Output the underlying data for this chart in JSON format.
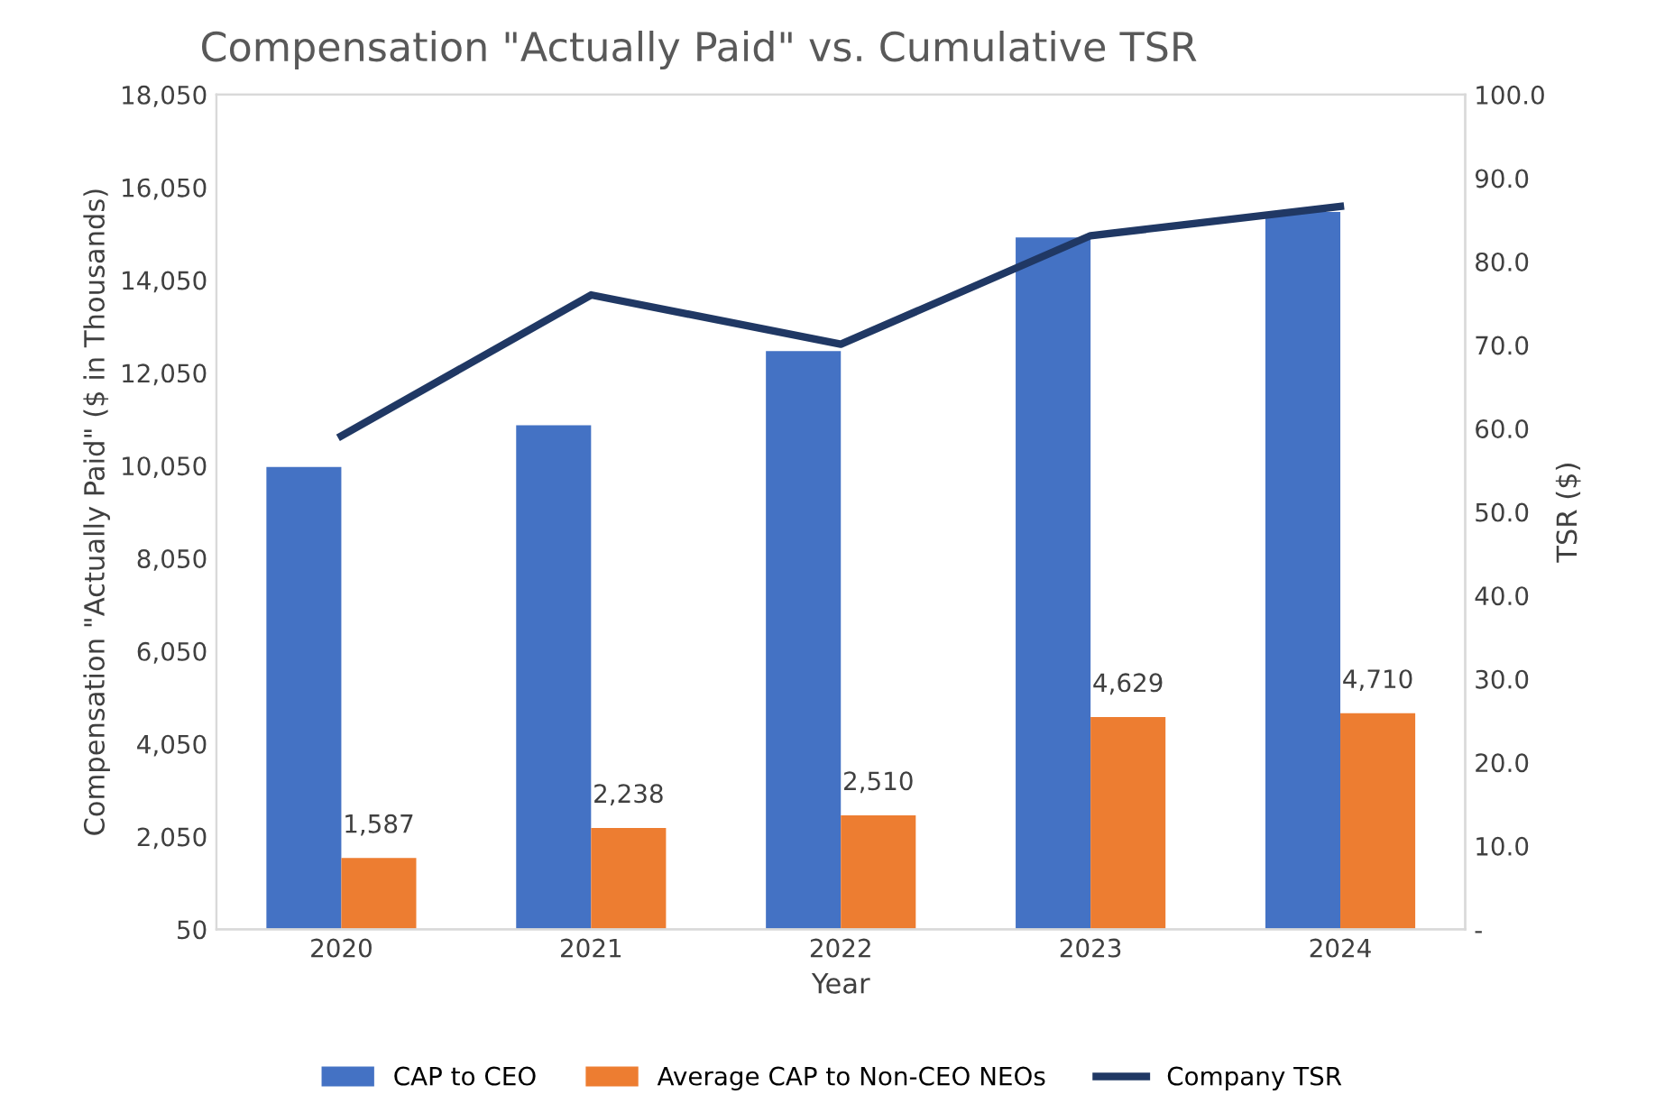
{
  "chart_data": {
    "type": "bar",
    "title": "Compensation \"Actually Paid\" vs. Cumulative TSR",
    "xlabel": "Year",
    "ylabel": "Compensation \"Actually Paid\" ($ in Thousands)",
    "y2label": "TSR ($)",
    "categories": [
      "2020",
      "2021",
      "2022",
      "2023",
      "2024"
    ],
    "series": [
      {
        "name": "CAP to CEO",
        "color": "#4472c4",
        "values": [
          10020,
          10920,
          12520,
          14970,
          15520
        ]
      },
      {
        "name": "Average CAP to Non-CEO NEOs",
        "color": "#ed7d31",
        "values": [
          1587,
          2238,
          2510,
          4629,
          4710
        ],
        "value_labels": [
          "1,587",
          "2,238",
          "2,510",
          "4,629",
          "4,710"
        ]
      },
      {
        "name": "Company TSR",
        "color": "#203864",
        "type": "line",
        "axis": "y2",
        "values": [
          59.1,
          76.0,
          70.1,
          83.1,
          86.6
        ]
      }
    ],
    "ylim": [
      50,
      18050
    ],
    "yticks": [
      {
        "value": 50,
        "label": "50"
      },
      {
        "value": 2050,
        "label": "2,050"
      },
      {
        "value": 4050,
        "label": "4,050"
      },
      {
        "value": 6050,
        "label": "6,050"
      },
      {
        "value": 8050,
        "label": "8,050"
      },
      {
        "value": 10050,
        "label": "10,050"
      },
      {
        "value": 12050,
        "label": "12,050"
      },
      {
        "value": 14050,
        "label": "14,050"
      },
      {
        "value": 16050,
        "label": "16,050"
      },
      {
        "value": 18050,
        "label": "18,050"
      }
    ],
    "y2lim": [
      0,
      100
    ],
    "y2ticks": [
      {
        "value": 0,
        "label": "-"
      },
      {
        "value": 10,
        "label": "10.0"
      },
      {
        "value": 20,
        "label": "20.0"
      },
      {
        "value": 30,
        "label": "30.0"
      },
      {
        "value": 40,
        "label": "40.0"
      },
      {
        "value": 50,
        "label": "50.0"
      },
      {
        "value": 60,
        "label": "60.0"
      },
      {
        "value": 70,
        "label": "70.0"
      },
      {
        "value": 80,
        "label": "80.0"
      },
      {
        "value": 90,
        "label": "90.0"
      },
      {
        "value": 100,
        "label": "100.0"
      }
    ],
    "grid": false,
    "legend": "bottom",
    "marker": "none",
    "line_style": "solid"
  }
}
